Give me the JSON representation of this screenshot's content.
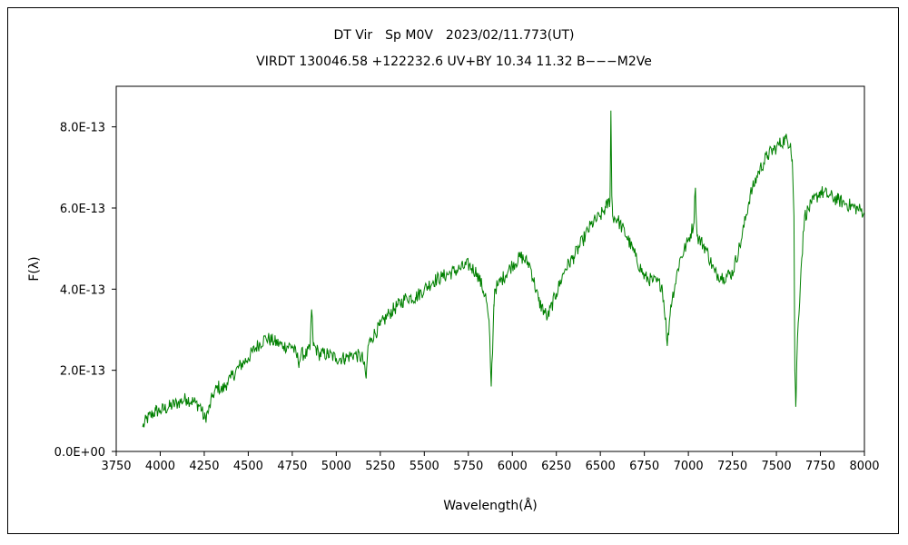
{
  "chart_data": {
    "type": "line",
    "title": "DT Vir　Sp M0V　2023/02/11.773(UT)",
    "subtitle": "VIRDT 130046.58 +122232.6 UV+BY 10.34 11.32 B−−−M2Ve",
    "xlabel": "Wavelength(Å)",
    "ylabel": "F(λ)",
    "xlim": [
      3750,
      8000
    ],
    "ylim": [
      0,
      9e-13
    ],
    "x_ticks": [
      "3750",
      "4000",
      "4250",
      "4500",
      "4750",
      "5000",
      "5250",
      "5500",
      "5750",
      "6000",
      "6250",
      "6500",
      "6750",
      "7000",
      "7250",
      "7500",
      "7750",
      "8000"
    ],
    "y_ticks": [
      "0.0E+00",
      "2.0E-13",
      "4.0E-13",
      "6.0E-13",
      "8.0E-13"
    ],
    "grid": false,
    "line_color": "#008000",
    "series": [
      {
        "x": [
          3900,
          3925,
          3950,
          3975,
          4000,
          4050,
          4100,
          4150,
          4200,
          4230,
          4250,
          4275,
          4300,
          4330,
          4350,
          4380,
          4400,
          4450,
          4500,
          4550,
          4600,
          4650,
          4700,
          4750,
          4790,
          4800,
          4830,
          4850,
          4860,
          4870,
          4890,
          4900,
          4950,
          5000,
          5050,
          5100,
          5150,
          5170,
          5180,
          5200,
          5250,
          5300,
          5350,
          5400,
          5450,
          5500,
          5550,
          5600,
          5650,
          5700,
          5750,
          5800,
          5850,
          5870,
          5880,
          5890,
          5895,
          5900,
          5920,
          5950,
          6000,
          6050,
          6100,
          6150,
          6200,
          6250,
          6300,
          6350,
          6400,
          6450,
          6500,
          6530,
          6555,
          6560,
          6565,
          6570,
          6600,
          6650,
          6700,
          6750,
          6800,
          6850,
          6870,
          6880,
          6900,
          6950,
          7000,
          7030,
          7040,
          7050,
          7100,
          7150,
          7200,
          7250,
          7300,
          7350,
          7400,
          7450,
          7500,
          7550,
          7580,
          7590,
          7600,
          7605,
          7610,
          7620,
          7640,
          7660,
          7700,
          7750,
          7800,
          7850,
          7900,
          7950,
          8000
        ],
        "y": [
          6e-14,
          8e-14,
          9e-14,
          1e-13,
          1e-13,
          1.1e-13,
          1.2e-13,
          1.3e-13,
          1.2e-13,
          1.1e-13,
          8e-14,
          1e-13,
          1.4e-13,
          1.6e-13,
          1.5e-13,
          1.7e-13,
          1.8e-13,
          2.1e-13,
          2.3e-13,
          2.6e-13,
          2.8e-13,
          2.7e-13,
          2.6e-13,
          2.6e-13,
          2.2e-13,
          2.4e-13,
          2.4e-13,
          2.5e-13,
          3.5e-13,
          2.6e-13,
          2.5e-13,
          2.4e-13,
          2.4e-13,
          2.3e-13,
          2.3e-13,
          2.4e-13,
          2.3e-13,
          1.8e-13,
          2.6e-13,
          2.8e-13,
          3.1e-13,
          3.4e-13,
          3.6e-13,
          3.8e-13,
          3.8e-13,
          4e-13,
          4.2e-13,
          4.3e-13,
          4.4e-13,
          4.5e-13,
          4.6e-13,
          4.4e-13,
          3.8e-13,
          3e-13,
          1.6e-13,
          2.8e-13,
          3.6e-13,
          4e-13,
          4.1e-13,
          4.3e-13,
          4.6e-13,
          4.8e-13,
          4.6e-13,
          3.7e-13,
          3.3e-13,
          3.9e-13,
          4.5e-13,
          4.8e-13,
          5.2e-13,
          5.6e-13,
          5.8e-13,
          6e-13,
          6.2e-13,
          8.4e-13,
          6.3e-13,
          5.8e-13,
          5.7e-13,
          5.3e-13,
          4.8e-13,
          4.3e-13,
          4.2e-13,
          4.1e-13,
          3.3e-13,
          2.6e-13,
          3.6e-13,
          4.7e-13,
          5.2e-13,
          5.6e-13,
          6.5e-13,
          5.3e-13,
          5e-13,
          4.4e-13,
          4.3e-13,
          4.4e-13,
          5.2e-13,
          6.3e-13,
          6.9e-13,
          7.3e-13,
          7.5e-13,
          7.7e-13,
          7.6e-13,
          7.2e-13,
          5.8e-13,
          2e-13,
          1.1e-13,
          2.8e-13,
          4.5e-13,
          5.8e-13,
          6.1e-13,
          6.4e-13,
          6.3e-13,
          6.2e-13,
          6.1e-13,
          6e-13,
          5.9e-13
        ]
      }
    ]
  }
}
